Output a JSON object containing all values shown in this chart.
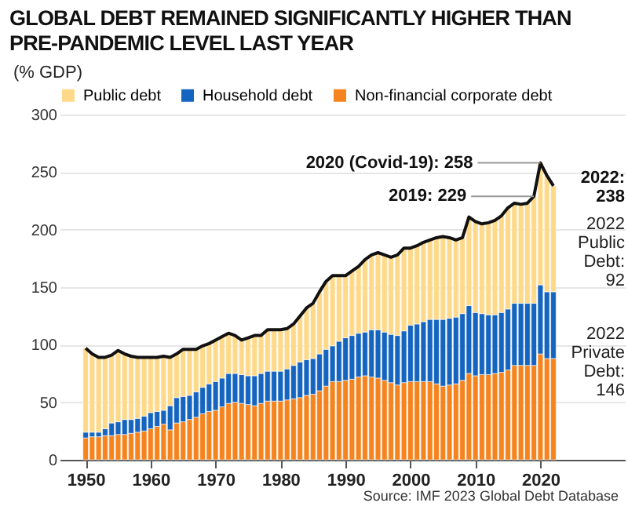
{
  "chart_data": {
    "type": "bar",
    "title": "GLOBAL DEBT REMAINED SIGNIFICANTLY HIGHER THAN PRE-PANDEMIC LEVEL LAST YEAR",
    "ylabel": "(% GDP)",
    "x": [
      1950,
      1951,
      1952,
      1953,
      1954,
      1955,
      1956,
      1957,
      1958,
      1959,
      1960,
      1961,
      1962,
      1963,
      1964,
      1965,
      1966,
      1967,
      1968,
      1969,
      1970,
      1971,
      1972,
      1973,
      1974,
      1975,
      1976,
      1977,
      1978,
      1979,
      1980,
      1981,
      1982,
      1983,
      1984,
      1985,
      1986,
      1987,
      1988,
      1989,
      1990,
      1991,
      1992,
      1993,
      1994,
      1995,
      1996,
      1997,
      1998,
      1999,
      2000,
      2001,
      2002,
      2003,
      2004,
      2005,
      2006,
      2007,
      2008,
      2009,
      2010,
      2011,
      2012,
      2013,
      2014,
      2015,
      2016,
      2017,
      2018,
      2019,
      2020,
      2021,
      2022
    ],
    "stacked": true,
    "series": [
      {
        "name": "Non-financial corporate debt",
        "color": "#f5841f",
        "values": [
          19,
          20,
          20,
          21,
          21,
          22,
          22,
          23,
          24,
          25,
          27,
          29,
          31,
          26,
          32,
          33,
          35,
          37,
          40,
          42,
          43,
          46,
          49,
          50,
          49,
          48,
          47,
          49,
          51,
          51,
          51,
          52,
          53,
          54,
          56,
          57,
          60,
          64,
          68,
          68,
          69,
          70,
          72,
          73,
          72,
          71,
          69,
          67,
          65,
          67,
          68,
          68,
          68,
          68,
          66,
          64,
          65,
          66,
          69,
          75,
          73,
          74,
          74,
          75,
          76,
          78,
          82,
          82,
          82,
          82,
          92,
          88,
          88
        ]
      },
      {
        "name": "Household debt",
        "color": "#1565c0",
        "values": [
          5,
          4,
          4,
          6,
          11,
          11,
          13,
          12,
          12,
          13,
          14,
          13,
          12,
          21,
          22,
          22,
          21,
          22,
          23,
          24,
          25,
          25,
          26,
          25,
          25,
          25,
          26,
          26,
          26,
          26,
          26,
          27,
          29,
          31,
          31,
          31,
          32,
          32,
          31,
          35,
          37,
          38,
          38,
          38,
          41,
          42,
          42,
          42,
          43,
          45,
          49,
          50,
          52,
          54,
          56,
          58,
          58,
          58,
          58,
          59,
          55,
          53,
          52,
          51,
          52,
          53,
          54,
          54,
          54,
          54,
          60,
          58,
          58
        ]
      },
      {
        "name": "Public debt",
        "color": "#ffd98a",
        "values": [
          73,
          68,
          65,
          62,
          59,
          62,
          57,
          55,
          53,
          51,
          48,
          47,
          47,
          42,
          38,
          41,
          40,
          37,
          36,
          35,
          36,
          36,
          35,
          33,
          30,
          33,
          35,
          33,
          36,
          36,
          36,
          35,
          36,
          40,
          45,
          48,
          54,
          59,
          61,
          57,
          54,
          56,
          58,
          63,
          65,
          67,
          67,
          67,
          70,
          72,
          67,
          68,
          69,
          69,
          71,
          72,
          70,
          67,
          66,
          77,
          79,
          78,
          80,
          82,
          84,
          88,
          87,
          86,
          87,
          93,
          106,
          101,
          92
        ]
      },
      {
        "type": "line",
        "color": "#111111",
        "values": [
          97,
          92,
          89,
          89,
          91,
          95,
          92,
          90,
          89,
          89,
          89,
          89,
          90,
          89,
          92,
          96,
          96,
          96,
          99,
          101,
          104,
          107,
          110,
          108,
          104,
          106,
          108,
          108,
          113,
          113,
          113,
          114,
          118,
          125,
          132,
          136,
          146,
          155,
          160,
          160,
          160,
          164,
          168,
          174,
          178,
          180,
          178,
          176,
          178,
          184,
          184,
          186,
          189,
          191,
          193,
          194,
          193,
          191,
          193,
          211,
          207,
          205,
          206,
          208,
          212,
          219,
          223,
          222,
          223,
          229,
          258,
          247,
          238
        ]
      }
    ],
    "xlim": [
      1946,
      2033
    ],
    "xticks": [
      1950,
      1960,
      1970,
      1980,
      1990,
      2000,
      2010,
      2020
    ],
    "ylim": [
      0,
      300
    ],
    "yticks": [
      0,
      50,
      100,
      150,
      200,
      250,
      300
    ],
    "grid": "y",
    "legend": "top",
    "line_style": "solid",
    "marker": "none",
    "annotations": [
      {
        "text": "2020 (Covid-19): 258",
        "x": 2020,
        "y": 258
      },
      {
        "text": "2019: 229",
        "x": 2019,
        "y": 229
      },
      {
        "text": "2022: 238",
        "x": 2022,
        "y": 238
      },
      "2022 Public Debt: 92",
      "2022 Private Debt: 146",
      "Source: IMF 2023 Global Debt Database"
    ]
  }
}
